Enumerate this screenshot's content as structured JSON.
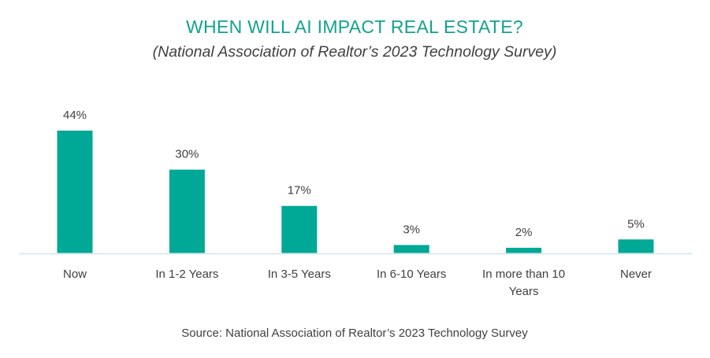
{
  "chart_data": {
    "type": "bar",
    "title": "WHEN WILL AI IMPACT REAL ESTATE?",
    "subtitle": "(National Association of Realtor’s 2023 Technology Survey)",
    "source": "Source: National Association of Realtor’s 2023 Technology Survey",
    "categories": [
      [
        "Now"
      ],
      [
        "In 1-2 Years"
      ],
      [
        "In 3-5 Years"
      ],
      [
        "In 6-10 Years"
      ],
      [
        "In more than 10",
        "Years"
      ],
      [
        "Never"
      ]
    ],
    "values": [
      44,
      30,
      17,
      3,
      2,
      5
    ],
    "value_labels": [
      "44%",
      "30%",
      "17%",
      "3%",
      "2%",
      "5%"
    ],
    "unit": "%",
    "ylim": [
      0,
      44
    ],
    "grid": false,
    "legend": "none",
    "colors": {
      "bar": "#00A896",
      "title": "#12A28E",
      "text": "#404040",
      "axis": "#D9E8EE"
    }
  }
}
